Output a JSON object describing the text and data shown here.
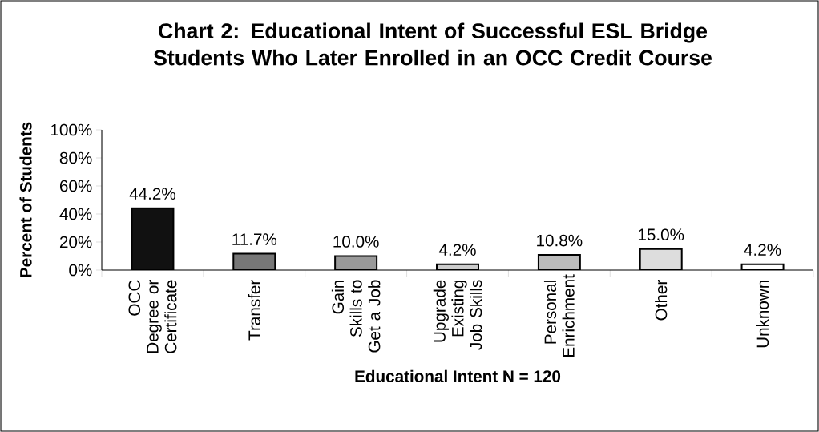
{
  "chart_data": {
    "type": "bar",
    "title": "Chart 2: Educational Intent of Successful ESL Bridge Students Who Later Enrolled in an OCC Credit Course",
    "xlabel": "Educational Intent N = 120",
    "ylabel": "Percent of Students",
    "categories": [
      "OCC Degree or Certificate",
      "Transfer",
      "Gain Skills to Get a Job",
      "Upgrade Existing Job Skills",
      "Personal Enrichment",
      "Other",
      "Unknown"
    ],
    "values": [
      44.2,
      11.7,
      10.0,
      4.2,
      10.8,
      15.0,
      4.2
    ],
    "value_labels": [
      "44.2%",
      "11.7%",
      "10.0%",
      "4.2%",
      "10.8%",
      "15.0%",
      "4.2%"
    ],
    "colors": [
      "#111111",
      "#777777",
      "#999999",
      "#cccccc",
      "#bbbbbb",
      "#dddddd",
      "#ffffff"
    ],
    "ylim": [
      0,
      100
    ],
    "yticks": [
      {
        "value": 0,
        "label": "0%"
      },
      {
        "value": 20,
        "label": "20%"
      },
      {
        "value": 40,
        "label": "40%"
      },
      {
        "value": 60,
        "label": "60%"
      },
      {
        "value": 80,
        "label": "80%"
      },
      {
        "value": 100,
        "label": "100%"
      }
    ],
    "grid": false
  }
}
